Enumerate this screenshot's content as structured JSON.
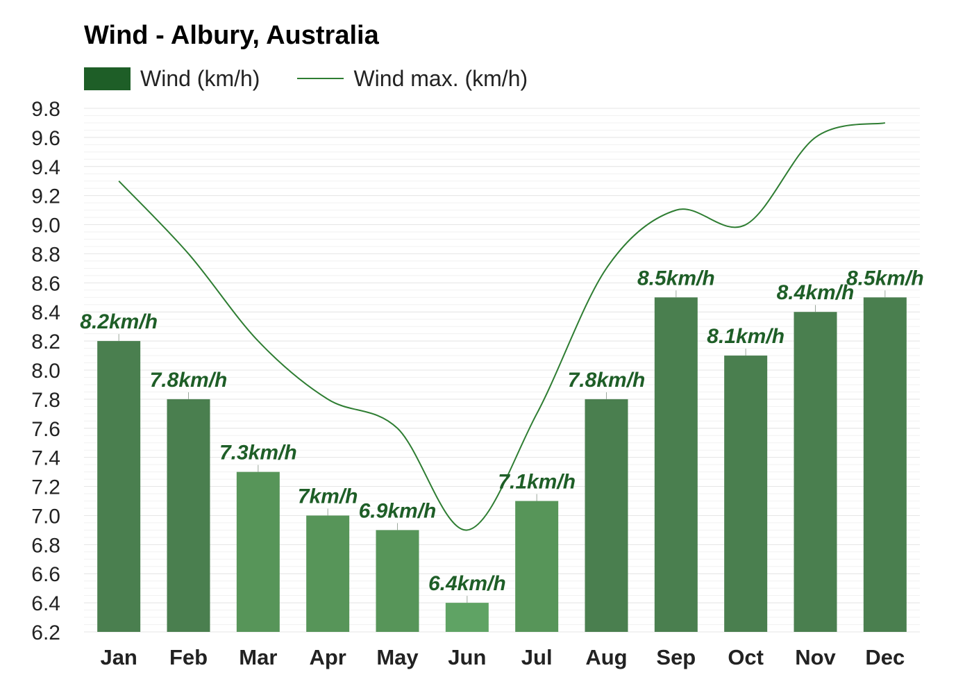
{
  "chart_data": {
    "type": "bar",
    "title": "Wind - Albury, Australia",
    "categories": [
      "Jan",
      "Feb",
      "Mar",
      "Apr",
      "May",
      "Jun",
      "Jul",
      "Aug",
      "Sep",
      "Oct",
      "Nov",
      "Dec"
    ],
    "series": [
      {
        "name": "Wind (km/h)",
        "type": "bar",
        "values": [
          8.2,
          7.8,
          7.3,
          7.0,
          6.9,
          6.4,
          7.1,
          7.8,
          8.5,
          8.1,
          8.4,
          8.5
        ],
        "data_labels": [
          "8.2km/h",
          "7.8km/h",
          "7.3km/h",
          "7km/h",
          "6.9km/h",
          "6.4km/h",
          "7.1km/h",
          "7.8km/h",
          "8.5km/h",
          "8.1km/h",
          "8.4km/h",
          "8.5km/h"
        ],
        "colors": [
          "#4a7f4f",
          "#4a7f4f",
          "#579559",
          "#579559",
          "#579559",
          "#5fa364",
          "#579559",
          "#4a7f4f",
          "#4a7f4f",
          "#4a7f4f",
          "#4a7f4f",
          "#4a7f4f"
        ]
      },
      {
        "name": "Wind max. (km/h)",
        "type": "line",
        "values": [
          9.3,
          8.8,
          8.2,
          7.8,
          7.6,
          6.9,
          7.7,
          8.7,
          9.1,
          9.0,
          9.6,
          9.7
        ],
        "color": "#2e7d32"
      }
    ],
    "y_ticks": [
      "6.2",
      "6.4",
      "6.6",
      "6.8",
      "7.0",
      "7.2",
      "7.4",
      "7.6",
      "7.8",
      "8.0",
      "8.2",
      "8.4",
      "8.6",
      "8.8",
      "9.0",
      "9.2",
      "9.4",
      "9.6",
      "9.8"
    ],
    "ylim": [
      6.2,
      9.8
    ],
    "grid": true,
    "legend": "top-left"
  },
  "colors": {
    "legend_swatch": "#1e5e27",
    "label": "#1e5e27",
    "grid": "#e6e6e6"
  }
}
